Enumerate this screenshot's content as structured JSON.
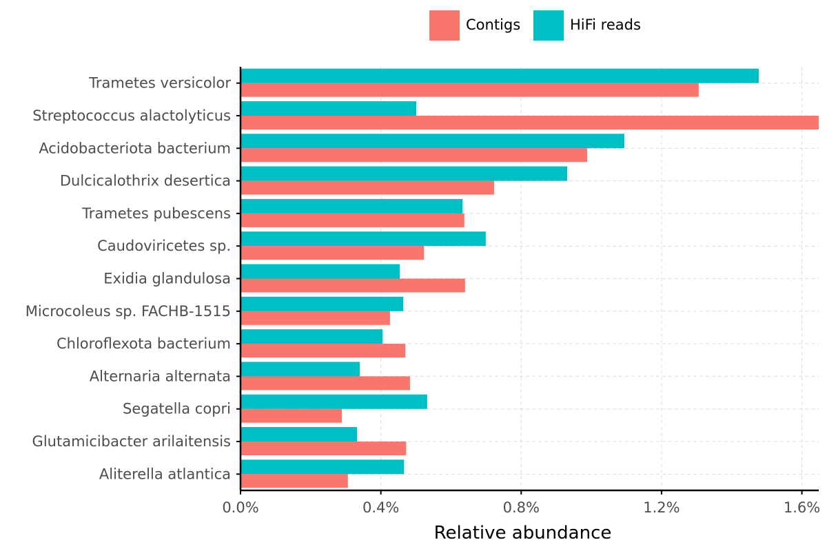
{
  "chart_data": {
    "type": "bar",
    "orientation": "horizontal",
    "title": "",
    "xlabel": "Relative abundance",
    "ylabel": "",
    "xlim": [
      0,
      1.648
    ],
    "x_ticks": [
      0,
      0.4,
      0.8,
      1.2,
      1.6
    ],
    "x_tick_labels": [
      "0.0%",
      "0.4%",
      "0.8%",
      "1.2%",
      "1.6%"
    ],
    "grid": true,
    "legend_position": "top",
    "categories": [
      "Trametes versicolor",
      "Streptococcus alactolyticus",
      "Acidobacteriota bacterium",
      "Dulcicalothrix desertica",
      "Trametes pubescens",
      "Caudoviricetes sp.",
      "Exidia glandulosa",
      "Microcoleus sp. FACHB-1515",
      "Chloroflexota bacterium",
      "Alternaria alternata",
      "Segatella copri",
      "Glutamicibacter arilaitensis",
      "Aliterella atlantica"
    ],
    "series": [
      {
        "name": "Contigs",
        "color": "#F8766D",
        "values": [
          1.306,
          1.648,
          0.988,
          0.723,
          0.638,
          0.523,
          0.64,
          0.426,
          0.47,
          0.483,
          0.289,
          0.472,
          0.306
        ]
      },
      {
        "name": "HiFi reads",
        "color": "#00BFC4",
        "values": [
          1.477,
          0.501,
          1.094,
          0.931,
          0.633,
          0.699,
          0.454,
          0.464,
          0.405,
          0.34,
          0.532,
          0.332,
          0.466
        ]
      }
    ],
    "units": "%"
  }
}
